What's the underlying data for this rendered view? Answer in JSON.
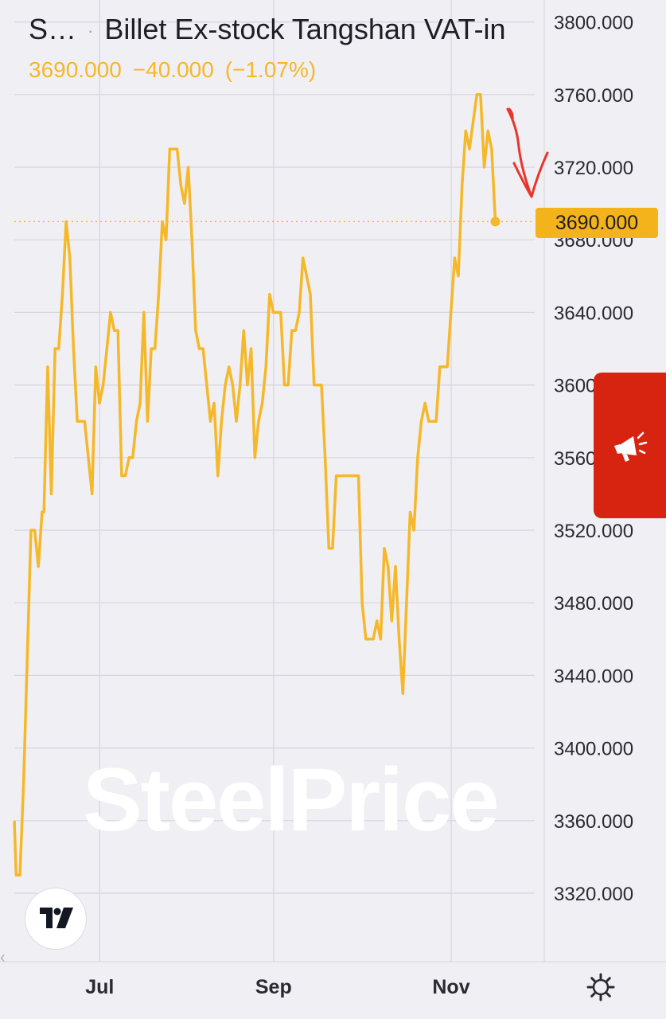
{
  "header": {
    "symbol": "S…",
    "separator": "·",
    "title": "Billet Ex-stock Tangshan VAT-in",
    "price": "3690.000",
    "change": "−40.000",
    "change_pct": "(−1.07%)"
  },
  "price_badge": "3690.000",
  "watermark": "SteelPrice",
  "colors": {
    "line": "#f5b829",
    "badge": "#f5b31b",
    "promo": "#d62410",
    "annotation_arrow": "#e8352b",
    "grid": "#d6d5dc",
    "axis_text": "#2a2a30"
  },
  "icons": {
    "promo": "megaphone-icon",
    "logo": "tradingview-logo-icon",
    "settings": "gear-icon",
    "handle": "chevron-left-icon"
  },
  "chart_data": {
    "type": "line",
    "title": "Billet Ex-stock Tangshan VAT-in",
    "last_value": 3690,
    "ylim": [
      3290,
      3812
    ],
    "y_ticks": [
      3320,
      3360,
      3400,
      3440,
      3480,
      3520,
      3560,
      3600,
      3640,
      3680,
      3720,
      3760,
      3800
    ],
    "y_tick_labels": [
      "3320.000",
      "3360.000",
      "3400.000",
      "3440.000",
      "3480.000",
      "3520.000",
      "3560.000",
      "3600.000",
      "3640.000",
      "3680.000",
      "3720.000",
      "3760.000",
      "3800.000"
    ],
    "x_range": [
      0,
      145
    ],
    "x_ticks": [
      {
        "x": 25,
        "label": "Jul"
      },
      {
        "x": 72,
        "label": "Sep"
      },
      {
        "x": 120,
        "label": "Nov"
      }
    ],
    "series": [
      {
        "values": [
          [
            0,
            3360
          ],
          [
            0.5,
            3330
          ],
          [
            1.5,
            3330
          ],
          [
            2.5,
            3380
          ],
          [
            3.5,
            3450
          ],
          [
            4.5,
            3520
          ],
          [
            5.5,
            3520
          ],
          [
            6.5,
            3500
          ],
          [
            7.5,
            3530
          ],
          [
            8,
            3530
          ],
          [
            9,
            3610
          ],
          [
            10,
            3540
          ],
          [
            11,
            3620
          ],
          [
            12,
            3620
          ],
          [
            13,
            3650
          ],
          [
            14,
            3690
          ],
          [
            15,
            3670
          ],
          [
            16,
            3620
          ],
          [
            17,
            3580
          ],
          [
            18,
            3580
          ],
          [
            19,
            3580
          ],
          [
            20,
            3560
          ],
          [
            21,
            3540
          ],
          [
            22,
            3610
          ],
          [
            23,
            3590
          ],
          [
            24,
            3600
          ],
          [
            25,
            3620
          ],
          [
            26,
            3640
          ],
          [
            27,
            3630
          ],
          [
            28,
            3630
          ],
          [
            29,
            3550
          ],
          [
            30,
            3550
          ],
          [
            31,
            3560
          ],
          [
            32,
            3560
          ],
          [
            33,
            3580
          ],
          [
            34,
            3590
          ],
          [
            35,
            3640
          ],
          [
            36,
            3580
          ],
          [
            37,
            3620
          ],
          [
            38,
            3620
          ],
          [
            39,
            3650
          ],
          [
            40,
            3690
          ],
          [
            41,
            3680
          ],
          [
            42,
            3730
          ],
          [
            43,
            3730
          ],
          [
            44,
            3730
          ],
          [
            45,
            3710
          ],
          [
            46,
            3700
          ],
          [
            47,
            3720
          ],
          [
            48,
            3680
          ],
          [
            49,
            3630
          ],
          [
            50,
            3620
          ],
          [
            51,
            3620
          ],
          [
            52,
            3600
          ],
          [
            53,
            3580
          ],
          [
            54,
            3590
          ],
          [
            55,
            3550
          ],
          [
            56,
            3580
          ],
          [
            57,
            3600
          ],
          [
            58,
            3610
          ],
          [
            59,
            3600
          ],
          [
            60,
            3580
          ],
          [
            61,
            3600
          ],
          [
            62,
            3630
          ],
          [
            63,
            3600
          ],
          [
            64,
            3620
          ],
          [
            65,
            3560
          ],
          [
            66,
            3580
          ],
          [
            67,
            3590
          ],
          [
            68,
            3610
          ],
          [
            69,
            3650
          ],
          [
            70,
            3640
          ],
          [
            71,
            3640
          ],
          [
            72,
            3640
          ],
          [
            73,
            3600
          ],
          [
            74,
            3600
          ],
          [
            75,
            3630
          ],
          [
            76,
            3630
          ],
          [
            77,
            3640
          ],
          [
            78,
            3670
          ],
          [
            79,
            3660
          ],
          [
            80,
            3650
          ],
          [
            81,
            3600
          ],
          [
            82,
            3600
          ],
          [
            83,
            3600
          ],
          [
            84,
            3560
          ],
          [
            85,
            3510
          ],
          [
            86,
            3510
          ],
          [
            87,
            3550
          ],
          [
            88,
            3550
          ],
          [
            89,
            3550
          ],
          [
            90,
            3550
          ],
          [
            91,
            3550
          ],
          [
            92,
            3550
          ],
          [
            93,
            3550
          ],
          [
            94,
            3480
          ],
          [
            95,
            3460
          ],
          [
            96,
            3460
          ],
          [
            97,
            3460
          ],
          [
            98,
            3470
          ],
          [
            99,
            3460
          ],
          [
            100,
            3510
          ],
          [
            101,
            3500
          ],
          [
            102,
            3470
          ],
          [
            103,
            3500
          ],
          [
            104,
            3460
          ],
          [
            105,
            3430
          ],
          [
            106,
            3480
          ],
          [
            107,
            3530
          ],
          [
            108,
            3520
          ],
          [
            109,
            3560
          ],
          [
            110,
            3580
          ],
          [
            111,
            3590
          ],
          [
            112,
            3580
          ],
          [
            113,
            3580
          ],
          [
            114,
            3580
          ],
          [
            115,
            3610
          ],
          [
            116,
            3610
          ],
          [
            117,
            3610
          ],
          [
            118,
            3640
          ],
          [
            119,
            3670
          ],
          [
            120,
            3660
          ],
          [
            121,
            3710
          ],
          [
            122,
            3740
          ],
          [
            123,
            3730
          ],
          [
            124,
            3745
          ],
          [
            125,
            3760
          ],
          [
            126,
            3760
          ],
          [
            127,
            3720
          ],
          [
            128,
            3740
          ],
          [
            129,
            3730
          ],
          [
            130,
            3690
          ]
        ]
      }
    ],
    "grid": true,
    "annotation": "red hand-drawn arrow pointing down near latest value"
  },
  "axis": {
    "x_labels": [
      "Jul",
      "Sep",
      "Nov"
    ]
  }
}
